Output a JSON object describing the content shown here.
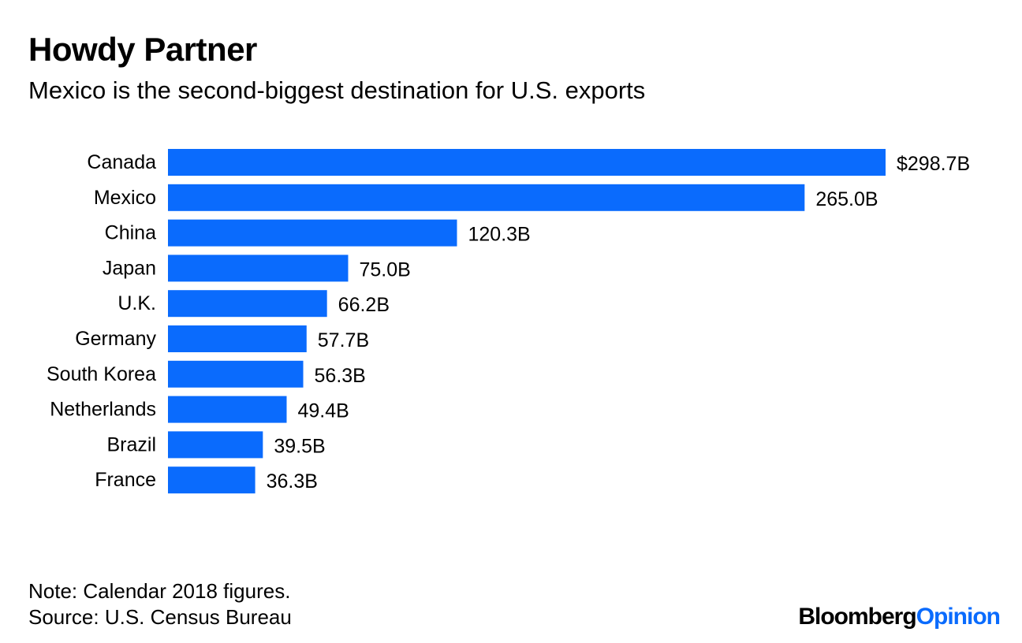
{
  "header": {
    "title": "Howdy Partner",
    "subtitle": "Mexico is the second-biggest destination for U.S. exports"
  },
  "chart_data": {
    "type": "bar",
    "orientation": "horizontal",
    "title": "Howdy Partner",
    "subtitle": "Mexico is the second-biggest destination for U.S. exports",
    "categories": [
      "Canada",
      "Mexico",
      "China",
      "Japan",
      "U.K.",
      "Germany",
      "South Korea",
      "Netherlands",
      "Brazil",
      "France"
    ],
    "values": [
      298.7,
      265.0,
      120.3,
      75.0,
      66.2,
      57.7,
      56.3,
      49.4,
      39.5,
      36.3
    ],
    "value_labels": [
      "$298.7B",
      "265.0B",
      "120.3B",
      "75.0B",
      "66.2B",
      "57.7B",
      "56.3B",
      "49.4B",
      "39.5B",
      "36.3B"
    ],
    "unit": "billion USD",
    "bar_color": "#0a6bfd",
    "xlim": [
      0,
      298.7
    ],
    "xlabel": "",
    "ylabel": "",
    "grid": false,
    "legend": "none"
  },
  "footer": {
    "note": "Note: Calendar 2018 figures.",
    "source": "Source: U.S. Census Bureau",
    "brand_primary": "Bloomberg",
    "brand_accent": "Opinion",
    "brand_accent_color": "#0a6bfd"
  }
}
